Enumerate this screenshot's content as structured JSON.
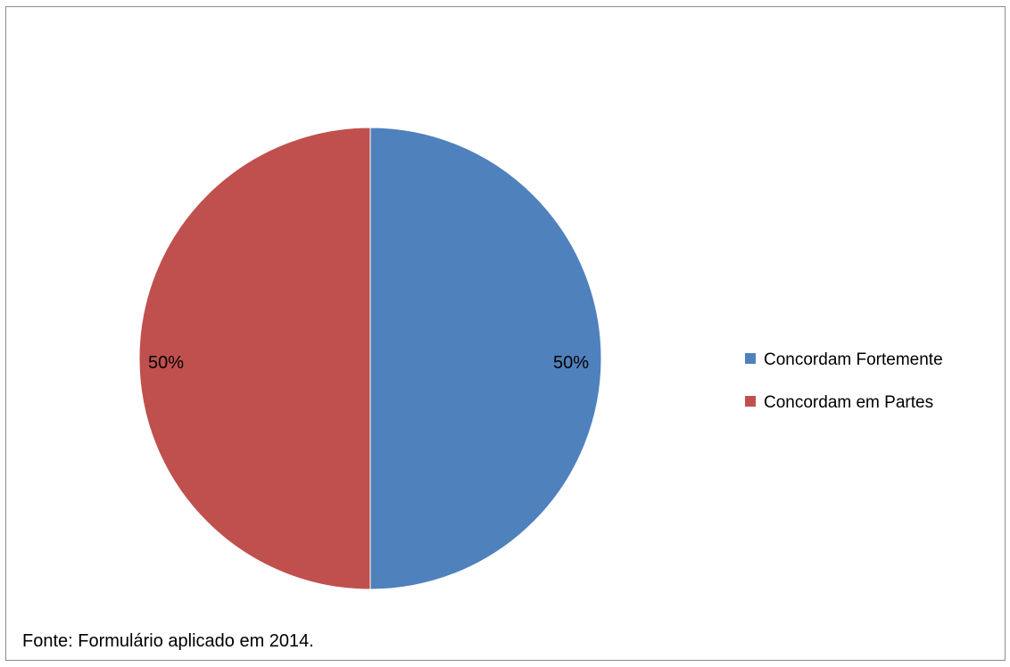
{
  "chart_data": {
    "type": "pie",
    "title": "",
    "slices": [
      {
        "label": "Concordam Fortemente",
        "value": 50,
        "data_label": "50%",
        "color": "#4F81BD"
      },
      {
        "label": "Concordam em Partes",
        "value": 50,
        "data_label": "50%",
        "color": "#C0504D"
      }
    ],
    "legend": {
      "position": "right",
      "items": [
        "Concordam Fortemente",
        "Concordam em Partes"
      ]
    }
  },
  "source_note": "Fonte: Formulário aplicado em 2014."
}
